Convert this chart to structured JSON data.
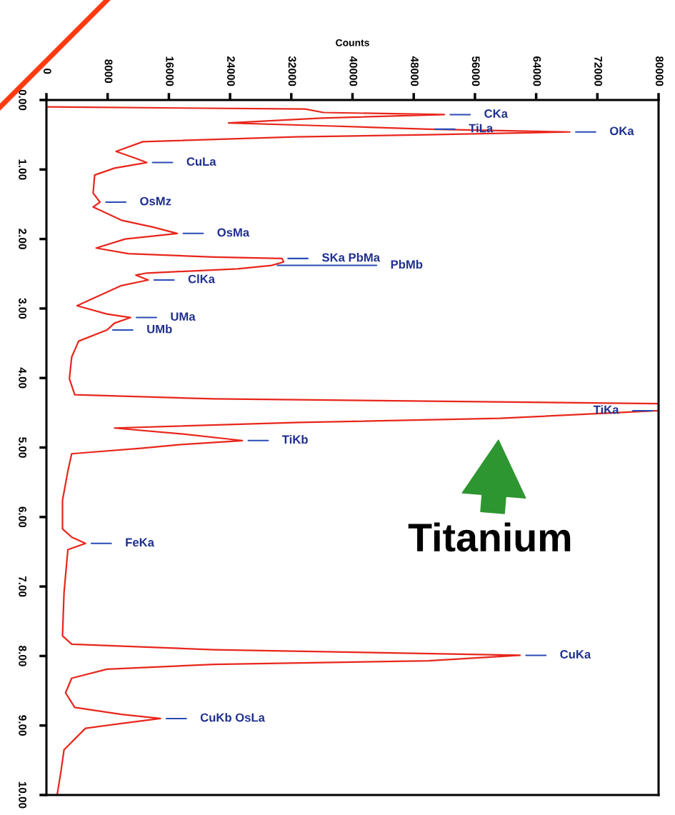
{
  "chart_data": {
    "type": "line",
    "xlabel": "Counts",
    "xlim": [
      0,
      80000
    ],
    "xticks": [
      0,
      8000,
      16000,
      24000,
      32000,
      40000,
      48000,
      56000,
      64000,
      72000,
      80000
    ],
    "ylim": [
      10,
      0
    ],
    "yticks": [
      {
        "value": 0,
        "label": "0.00"
      },
      {
        "value": 1,
        "label": "1.00"
      },
      {
        "value": 2,
        "label": "2.00"
      },
      {
        "value": 3,
        "label": "3.00"
      },
      {
        "value": 4,
        "label": "4.00"
      },
      {
        "value": 5,
        "label": "5.00"
      },
      {
        "value": 6,
        "label": "6.00"
      },
      {
        "value": 7,
        "label": "7.00"
      },
      {
        "value": 8,
        "label": "8.00"
      },
      {
        "value": 9,
        "label": "9.00"
      },
      {
        "value": 10,
        "label": "10.00"
      }
    ],
    "series": [
      {
        "color": "#e8261c",
        "x": [
          200,
          33800,
          36200,
          52000,
          35900,
          23800,
          35900,
          50000,
          68400,
          49900,
          32500,
          12600,
          9100,
          11700,
          13100,
          8900,
          6300,
          6100,
          7000,
          6100,
          9800,
          14000,
          17100,
          10300,
          6500,
          10700,
          21900,
          30800,
          31000,
          29400,
          25000,
          13100,
          11700,
          13300,
          9800,
          4000,
          7900,
          11000,
          8900,
          7900,
          4200,
          3300,
          3000,
          3700,
          21900,
          80000,
          80000,
          59300,
          33100,
          8900,
          17300,
          25600,
          17300,
          12600,
          3300,
          2800,
          2100,
          2100,
          3300,
          5100,
          2800,
          2300,
          2100,
          3300,
          21900,
          61900,
          49900,
          21900,
          7900,
          3300,
          2500,
          3700,
          9800,
          14900,
          9800,
          5100,
          2300,
          1900,
          1400
        ],
        "values": [
          0.1,
          0.13,
          0.18,
          0.21,
          0.26,
          0.33,
          0.37,
          0.42,
          0.46,
          0.5,
          0.53,
          0.6,
          0.74,
          0.84,
          0.9,
          0.98,
          1.08,
          1.34,
          1.47,
          1.54,
          1.73,
          1.83,
          1.92,
          2.0,
          2.13,
          2.21,
          2.26,
          2.28,
          2.33,
          2.38,
          2.43,
          2.49,
          2.52,
          2.59,
          2.67,
          2.96,
          3.08,
          3.13,
          3.21,
          3.31,
          3.47,
          3.7,
          4.01,
          4.24,
          4.3,
          4.37,
          4.47,
          4.58,
          4.64,
          4.72,
          4.8,
          4.9,
          4.96,
          5.01,
          5.09,
          5.34,
          5.76,
          6.17,
          6.29,
          6.38,
          6.47,
          7.09,
          7.71,
          7.83,
          7.91,
          7.99,
          8.07,
          8.12,
          8.19,
          8.32,
          8.53,
          8.74,
          8.84,
          8.9,
          8.97,
          9.04,
          9.35,
          9.66,
          10.0
        ]
      }
    ],
    "annotations": [
      {
        "text": "CKa",
        "x": 52000,
        "y": 0.21
      },
      {
        "text": "TiLa",
        "x": 50000,
        "y": 0.42
      },
      {
        "text": "OKa",
        "x": 68400,
        "y": 0.46
      },
      {
        "text": "CuLa",
        "x": 13100,
        "y": 0.9
      },
      {
        "text": "OsMz",
        "x": 7000,
        "y": 1.47
      },
      {
        "text": "OsMa",
        "x": 17100,
        "y": 1.92
      },
      {
        "text": "SKa PbMa",
        "x": 30800,
        "y": 2.28
      },
      {
        "text": "PbMb",
        "x": 29400,
        "y": 2.38
      },
      {
        "text": "ClKa",
        "x": 13300,
        "y": 2.59
      },
      {
        "text": "UMa",
        "x": 11000,
        "y": 3.13
      },
      {
        "text": "UMb",
        "x": 7900,
        "y": 3.31
      },
      {
        "text": "TiKa",
        "x": 80000,
        "y": 4.47
      },
      {
        "text": "TiKb",
        "x": 25600,
        "y": 4.9
      },
      {
        "text": "FeKa",
        "x": 5100,
        "y": 6.38
      },
      {
        "text": "CuKa",
        "x": 61900,
        "y": 7.99
      },
      {
        "text": "CuKb OsLa",
        "x": 14900,
        "y": 8.9
      },
      {
        "text": "Titanium",
        "x": 59300,
        "y": 4.58
      }
    ]
  }
}
